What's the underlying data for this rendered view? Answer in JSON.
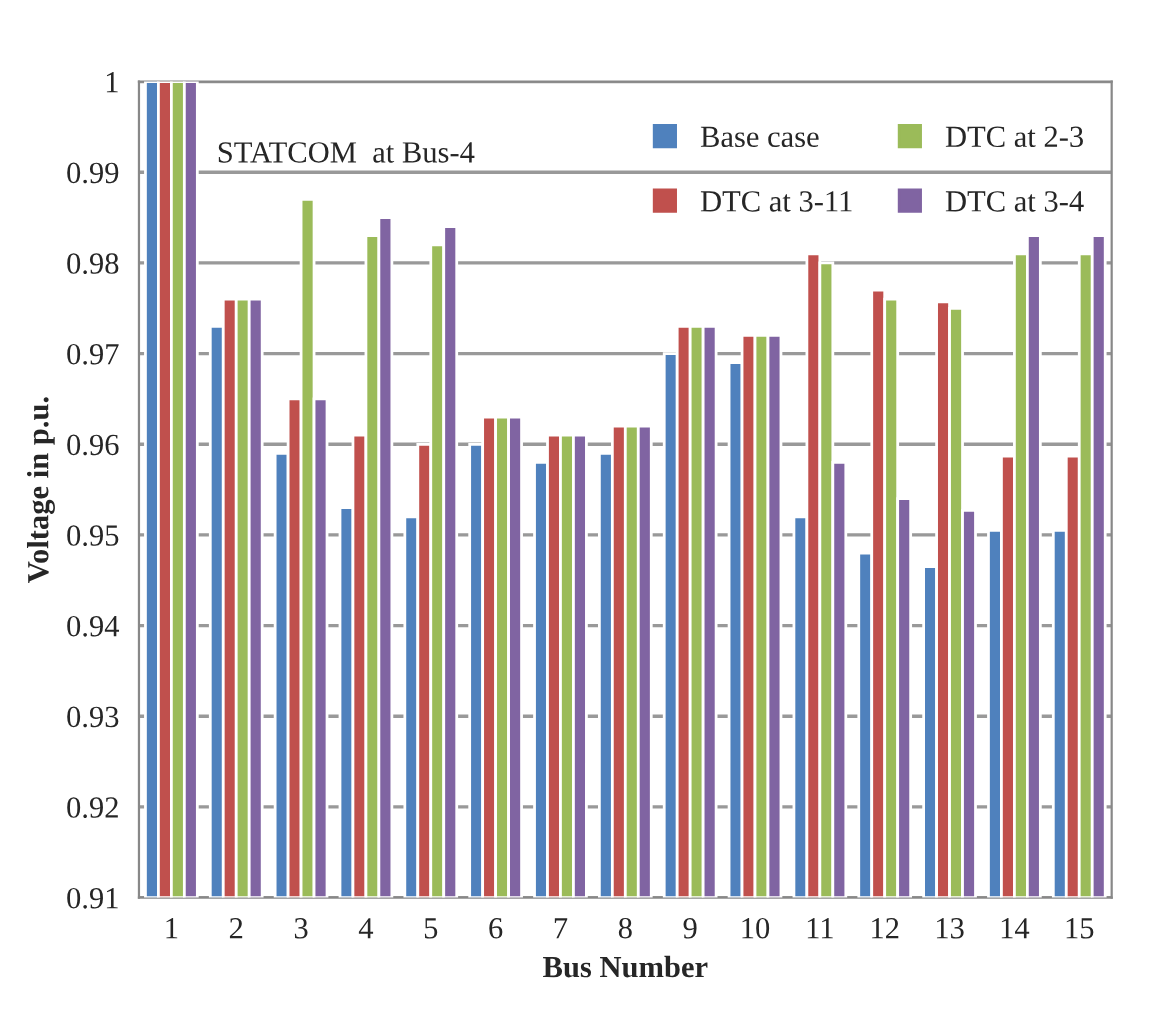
{
  "chart_data": {
    "type": "bar",
    "annotations": [
      "STATCOM  at Bus-4"
    ],
    "xlabel": "Bus Number",
    "ylabel": "Voltage in p.u.",
    "categories": [
      "1",
      "2",
      "3",
      "4",
      "5",
      "6",
      "7",
      "8",
      "9",
      "10",
      "11",
      "12",
      "13",
      "14",
      "15"
    ],
    "series": [
      {
        "name": "Base case",
        "color": "#4f81bd",
        "values": [
          1.0,
          0.973,
          0.959,
          0.953,
          0.952,
          0.96,
          0.958,
          0.959,
          0.97,
          0.969,
          0.952,
          0.948,
          0.9465,
          0.9505,
          0.9505
        ]
      },
      {
        "name": "DTC at 3-11",
        "color": "#c0504d",
        "values": [
          1.0,
          0.976,
          0.965,
          0.961,
          0.96,
          0.963,
          0.961,
          0.962,
          0.973,
          0.972,
          0.981,
          0.977,
          0.9757,
          0.9587,
          0.9587
        ]
      },
      {
        "name": "DTC at 2-3",
        "color": "#9bbb59",
        "values": [
          1.0,
          0.976,
          0.987,
          0.983,
          0.982,
          0.963,
          0.961,
          0.962,
          0.973,
          0.972,
          0.98,
          0.976,
          0.975,
          0.981,
          0.981
        ]
      },
      {
        "name": "DTC at 3-4",
        "color": "#8064a2",
        "values": [
          1.0,
          0.976,
          0.965,
          0.985,
          0.984,
          0.963,
          0.961,
          0.962,
          0.973,
          0.972,
          0.958,
          0.954,
          0.9527,
          0.983,
          0.983
        ]
      }
    ],
    "ylim": [
      0.91,
      1.0
    ],
    "yticks": [
      {
        "value": 0.91,
        "label": "0.91"
      },
      {
        "value": 0.92,
        "label": "0.92"
      },
      {
        "value": 0.93,
        "label": "0.93"
      },
      {
        "value": 0.94,
        "label": "0.94"
      },
      {
        "value": 0.95,
        "label": "0.95"
      },
      {
        "value": 0.96,
        "label": "0.96"
      },
      {
        "value": 0.97,
        "label": "0.97"
      },
      {
        "value": 0.98,
        "label": "0.98"
      },
      {
        "value": 0.99,
        "label": "0.99"
      },
      {
        "value": 1.0,
        "label": "1"
      }
    ],
    "grid": "y",
    "legend": "top right"
  }
}
